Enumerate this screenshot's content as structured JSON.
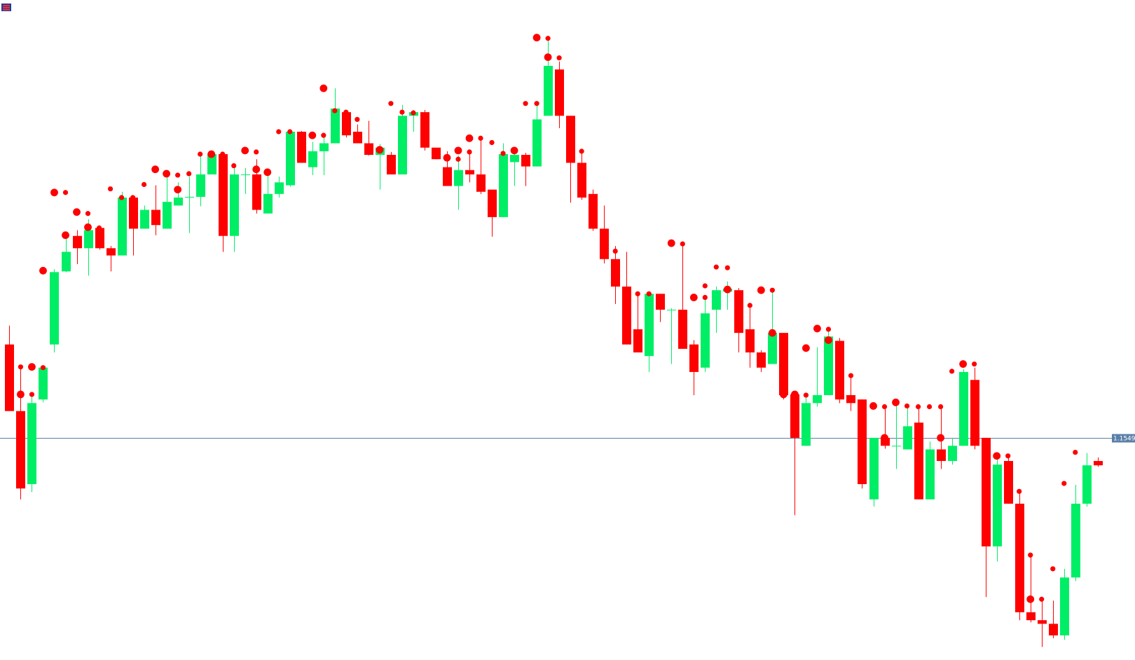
{
  "chart_data": {
    "type": "candlestick",
    "ylim": [
      1.1242,
      1.2154
    ],
    "up_color": "#00ee66",
    "down_color": "#ff0000",
    "open": [
      1.1678,
      1.1586,
      1.1485,
      1.1602,
      1.1678,
      1.1779,
      1.1828,
      1.1811,
      1.1839,
      1.1811,
      1.1801,
      1.1881,
      1.1838,
      1.1864,
      1.1838,
      1.187,
      1.1881,
      1.1882,
      1.1913,
      1.1941,
      1.1828,
      1.1913,
      1.1913,
      1.1859,
      1.1886,
      1.1898,
      1.1972,
      1.1923,
      1.1945,
      1.1956,
      1.1999,
      1.1972,
      1.1956,
      1.194,
      1.194,
      1.1913,
      1.1994,
      1.1999,
      1.195,
      1.1923,
      1.1897,
      1.1919,
      1.1913,
      1.1892,
      1.1854,
      1.193,
      1.194,
      1.1924,
      1.1994,
      1.2058,
      1.1994,
      1.1929,
      1.1886,
      1.1838,
      1.1796,
      1.1758,
      1.1699,
      1.1662,
      1.1748,
      1.1726,
      1.1726,
      1.1678,
      1.1646,
      1.1726,
      1.1751,
      1.1753,
      1.1699,
      1.1667,
      1.1651,
      1.1694,
      1.1609,
      1.1538,
      1.1597,
      1.1608,
      1.1683,
      1.1608,
      1.1602,
      1.1464,
      1.1549,
      1.1538,
      1.1533,
      1.157,
      1.1464,
      1.1533,
      1.1517,
      1.1538,
      1.1629,
      1.1549,
      1.1399,
      1.1517,
      1.1458,
      1.1308,
      1.1297,
      1.1292,
      1.1276,
      1.1356,
      1.1458,
      1.1517
    ],
    "high": [
      1.1704,
      1.1646,
      1.1609,
      1.1648,
      1.1782,
      1.1829,
      1.1836,
      1.1851,
      1.1842,
      1.1814,
      1.1889,
      1.1884,
      1.187,
      1.1898,
      1.1914,
      1.1902,
      1.191,
      1.1939,
      1.1945,
      1.1944,
      1.1922,
      1.1922,
      1.1934,
      1.1918,
      1.191,
      1.1974,
      1.1973,
      1.1958,
      1.1968,
      1.2032,
      1.2002,
      1.1982,
      1.1987,
      1.1955,
      1.1944,
      1.2009,
      1.2002,
      1.2002,
      1.195,
      1.1945,
      1.1939,
      1.1946,
      1.1964,
      1.1892,
      1.1956,
      1.1946,
      1.1943,
      1.2014,
      1.2099,
      1.2069,
      1.1994,
      1.1942,
      1.1892,
      1.187,
      1.1814,
      1.1806,
      1.175,
      1.1751,
      1.1748,
      1.1728,
      1.1814,
      1.1684,
      1.174,
      1.1758,
      1.1765,
      1.1756,
      1.173,
      1.167,
      1.1751,
      1.1694,
      1.1614,
      1.1605,
      1.1674,
      1.1696,
      1.1687,
      1.1633,
      1.1602,
      1.1549,
      1.1589,
      1.1598,
      1.1591,
      1.1589,
      1.1544,
      1.1589,
      1.1549,
      1.1644,
      1.1646,
      1.1549,
      1.1524,
      1.1521,
      1.1474,
      1.1388,
      1.1326,
      1.1324,
      1.1368,
      1.1484,
      1.1528,
      1.1522
    ],
    "low": [
      1.1586,
      1.1464,
      1.1474,
      1.1598,
      1.1667,
      1.1778,
      1.1789,
      1.1773,
      1.1809,
      1.1779,
      1.1801,
      1.1801,
      1.1838,
      1.1829,
      1.1838,
      1.187,
      1.1832,
      1.1869,
      1.1913,
      1.1806,
      1.1806,
      1.1886,
      1.1859,
      1.1859,
      1.1881,
      1.1896,
      1.1929,
      1.1912,
      1.1912,
      1.1956,
      1.1964,
      1.1956,
      1.1939,
      1.1892,
      1.1913,
      1.1913,
      1.1972,
      1.1946,
      1.1934,
      1.1897,
      1.1864,
      1.1902,
      1.1886,
      1.1827,
      1.1854,
      1.1897,
      1.1897,
      1.1924,
      1.1994,
      1.1977,
      1.1874,
      1.1878,
      1.1835,
      1.179,
      1.1734,
      1.1678,
      1.1667,
      1.164,
      1.1709,
      1.1651,
      1.1672,
      1.1608,
      1.164,
      1.1694,
      1.1726,
      1.1667,
      1.1646,
      1.164,
      1.1651,
      1.1602,
      1.1442,
      1.1538,
      1.1592,
      1.1608,
      1.1597,
      1.1586,
      1.1479,
      1.1454,
      1.1534,
      1.1506,
      1.1533,
      1.1464,
      1.1464,
      1.1506,
      1.1512,
      1.1538,
      1.1533,
      1.1329,
      1.1378,
      1.1458,
      1.1297,
      1.1294,
      1.126,
      1.1272,
      1.127,
      1.1351,
      1.1454,
      1.1509
    ],
    "close": [
      1.1586,
      1.1479,
      1.1597,
      1.1646,
      1.1778,
      1.1806,
      1.1811,
      1.1836,
      1.1811,
      1.1801,
      1.1881,
      1.1838,
      1.1864,
      1.1843,
      1.1875,
      1.1881,
      1.1882,
      1.1913,
      1.1941,
      1.1828,
      1.1913,
      1.1913,
      1.1864,
      1.1886,
      1.1902,
      1.1972,
      1.1929,
      1.1945,
      1.1956,
      1.2004,
      1.1967,
      1.1956,
      1.194,
      1.195,
      1.1913,
      1.1994,
      1.1999,
      1.195,
      1.1934,
      1.1897,
      1.1919,
      1.1913,
      1.1889,
      1.1854,
      1.1941,
      1.194,
      1.1924,
      1.1989,
      1.2063,
      1.1994,
      1.1929,
      1.1881,
      1.1838,
      1.1796,
      1.1758,
      1.1678,
      1.1667,
      1.1748,
      1.1726,
      1.1726,
      1.1672,
      1.164,
      1.1721,
      1.1753,
      1.1755,
      1.1694,
      1.1667,
      1.1646,
      1.1694,
      1.1608,
      1.1549,
      1.1597,
      1.1608,
      1.1689,
      1.1602,
      1.1597,
      1.1485,
      1.1549,
      1.1538,
      1.1538,
      1.1565,
      1.1464,
      1.1533,
      1.1517,
      1.1538,
      1.164,
      1.1538,
      1.1399,
      1.1512,
      1.1458,
      1.1308,
      1.1297,
      1.1292,
      1.1276,
      1.1356,
      1.1458,
      1.1511,
      1.1511
    ],
    "markers": [
      {
        "size": "small",
        "color": "#ff0000",
        "x": [
          1,
          2,
          3,
          5,
          7,
          8,
          9,
          10,
          11,
          12,
          15,
          16,
          17,
          19,
          20,
          22,
          24,
          25,
          28,
          29,
          30,
          31,
          34,
          35,
          36,
          40,
          41,
          42,
          43,
          44,
          46,
          47,
          48,
          49,
          51,
          54,
          56,
          57,
          60,
          62,
          62,
          63,
          64,
          65,
          66,
          68,
          71,
          73,
          75,
          78,
          80,
          81,
          82,
          83,
          84,
          86,
          89,
          90,
          91,
          92,
          93,
          94,
          95
        ],
        "values": [
          1.1647,
          1.1609,
          1.1646,
          1.1888,
          1.1859,
          1.1839,
          1.1893,
          1.1881,
          1.1881,
          1.1899,
          1.1912,
          1.1914,
          1.1941,
          1.1941,
          1.1925,
          1.1944,
          1.1972,
          1.1972,
          1.1967,
          1.2001,
          1.1999,
          1.1989,
          1.2011,
          1.1999,
          1.1998,
          1.1934,
          1.1944,
          1.1963,
          1.1957,
          1.1942,
          1.2011,
          1.2011,
          1.2101,
          1.2074,
          1.1945,
          1.1807,
          1.1748,
          1.1748,
          1.1817,
          1.1759,
          1.1743,
          1.1785,
          1.1784,
          1.1734,
          1.1732,
          1.1753,
          1.1608,
          1.1699,
          1.1635,
          1.1592,
          1.1593,
          1.1592,
          1.1592,
          1.1592,
          1.1641,
          1.1651,
          1.1524,
          1.1475,
          1.1387,
          1.1326,
          1.1368,
          1.1486,
          1.1529
        ]
      },
      {
        "size": "large",
        "color": "#ff0000",
        "x": [
          1,
          2,
          3,
          4,
          5,
          6,
          7,
          13,
          14,
          15,
          18,
          21,
          22,
          23,
          27,
          28,
          32,
          33,
          39,
          40,
          41,
          45,
          47,
          48,
          59,
          61,
          64,
          67,
          68,
          69,
          70,
          71,
          72,
          73,
          75,
          77,
          78,
          79,
          83,
          85,
          88,
          91
        ],
        "values": [
          1.1609,
          1.1647,
          1.178,
          1.1888,
          1.1829,
          1.1861,
          1.184,
          1.192,
          1.1914,
          1.1892,
          1.1941,
          1.1946,
          1.192,
          1.1916,
          1.1967,
          1.2032,
          1.1947,
          1.1947,
          1.1936,
          1.1946,
          1.1963,
          1.1946,
          1.2102,
          1.2075,
          1.1818,
          1.1743,
          1.1754,
          1.1753,
          1.1694,
          1.1609,
          1.1609,
          1.1673,
          1.17,
          1.1684,
          1.1603,
          1.1593,
          1.1549,
          1.1598,
          1.1549,
          1.1651,
          1.1524,
          1.1326
        ]
      }
    ],
    "current_price": 1.1549,
    "price_line_color": "#5a7fa8"
  }
}
